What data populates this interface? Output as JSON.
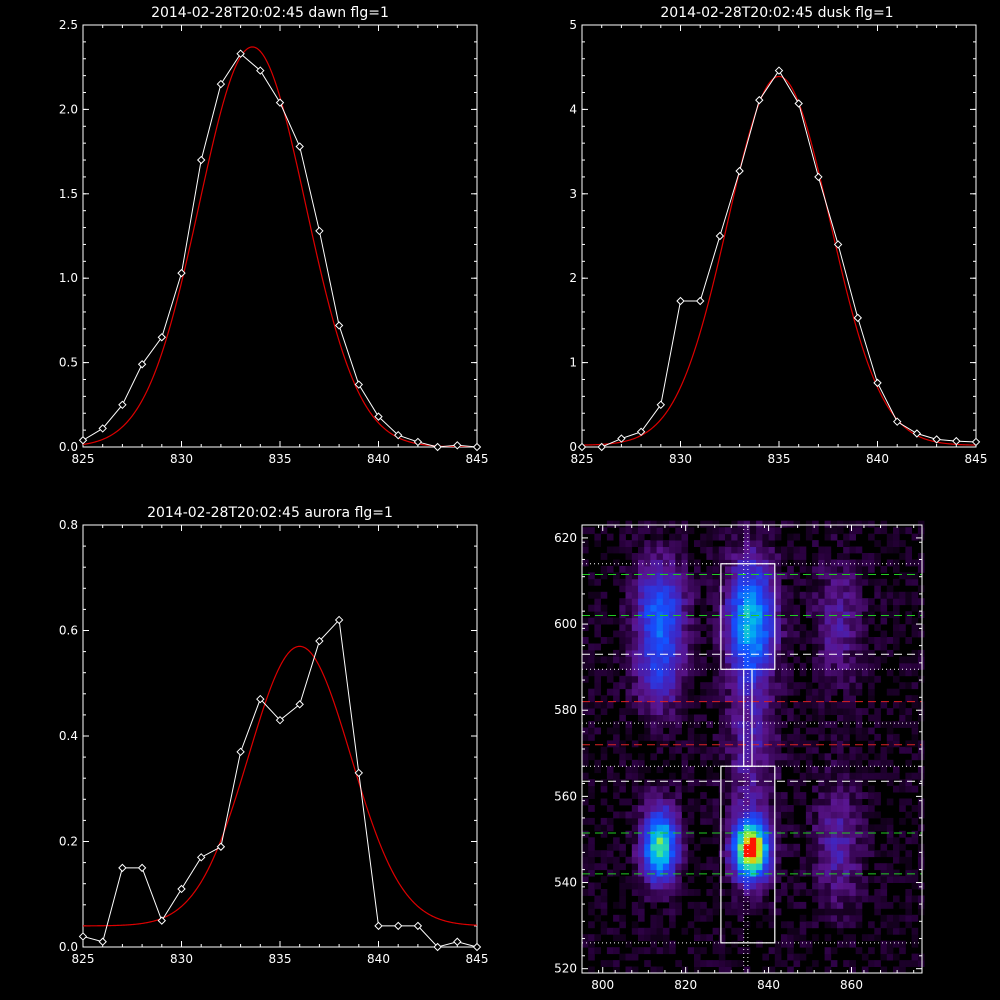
{
  "chart_data": [
    {
      "type": "line",
      "title": "2014-02-28T20:02:45 dawn flg=1",
      "xlim": [
        825,
        845
      ],
      "ylim": [
        0,
        2.5
      ],
      "xticks": [
        825,
        830,
        835,
        840,
        845
      ],
      "xtick_labels": [
        "825",
        "830",
        "835",
        "840",
        "845"
      ],
      "yticks": [
        0,
        0.5,
        1.0,
        1.5,
        2.0,
        2.5
      ],
      "ytick_labels": [
        "0.0",
        "0.5",
        "1.0",
        "1.5",
        "2.0",
        "2.5"
      ],
      "series": [
        {
          "kind": "data",
          "color": "#ffffff",
          "x": [
            825,
            826,
            827,
            828,
            829,
            830,
            831,
            832,
            833,
            834,
            835,
            836,
            837,
            838,
            839,
            840,
            841,
            842,
            843,
            844,
            845
          ],
          "y": [
            0.04,
            0.11,
            0.25,
            0.49,
            0.65,
            1.03,
            1.7,
            2.15,
            2.33,
            2.23,
            2.04,
            1.78,
            1.28,
            0.72,
            0.37,
            0.18,
            0.07,
            0.03,
            0.0,
            0.01,
            0.0
          ]
        },
        {
          "kind": "fit",
          "color": "#dd0000",
          "gauss": {
            "a": 2.37,
            "mu": 833.6,
            "sigma": 2.7,
            "c": 0.0
          }
        }
      ]
    },
    {
      "type": "line",
      "title": "2014-02-28T20:02:45 dusk flg=1",
      "xlim": [
        825,
        845
      ],
      "ylim": [
        0,
        5
      ],
      "xticks": [
        825,
        830,
        835,
        840,
        845
      ],
      "xtick_labels": [
        "825",
        "830",
        "835",
        "840",
        "845"
      ],
      "yticks": [
        0,
        1,
        2,
        3,
        4,
        5
      ],
      "ytick_labels": [
        "0",
        "1",
        "2",
        "3",
        "4",
        "5"
      ],
      "series": [
        {
          "kind": "data",
          "color": "#ffffff",
          "x": [
            825,
            826,
            827,
            828,
            829,
            830,
            831,
            832,
            833,
            834,
            835,
            836,
            837,
            838,
            839,
            840,
            841,
            842,
            843,
            844,
            845
          ],
          "y": [
            0.0,
            0.0,
            0.1,
            0.18,
            0.5,
            1.73,
            1.73,
            2.5,
            3.27,
            4.11,
            4.46,
            4.07,
            3.2,
            2.4,
            1.53,
            0.76,
            0.3,
            0.16,
            0.09,
            0.07,
            0.06
          ]
        },
        {
          "kind": "fit",
          "color": "#dd0000",
          "gauss": {
            "a": 4.37,
            "mu": 835.0,
            "sigma": 2.6,
            "c": 0.02
          }
        }
      ]
    },
    {
      "type": "line",
      "title": "2014-02-28T20:02:45 aurora flg=1",
      "xlim": [
        825,
        845
      ],
      "ylim": [
        0,
        0.8
      ],
      "xticks": [
        825,
        830,
        835,
        840,
        845
      ],
      "xtick_labels": [
        "825",
        "830",
        "835",
        "840",
        "845"
      ],
      "yticks": [
        0,
        0.2,
        0.4,
        0.6,
        0.8
      ],
      "ytick_labels": [
        "0.0",
        "0.2",
        "0.4",
        "0.6",
        "0.8"
      ],
      "series": [
        {
          "kind": "data",
          "color": "#ffffff",
          "x": [
            825,
            826,
            827,
            828,
            829,
            830,
            831,
            832,
            833,
            834,
            835,
            836,
            837,
            838,
            839,
            840,
            841,
            842,
            843,
            844,
            845
          ],
          "y": [
            0.02,
            0.01,
            0.15,
            0.15,
            0.05,
            0.11,
            0.17,
            0.19,
            0.37,
            0.47,
            0.43,
            0.46,
            0.58,
            0.62,
            0.33,
            0.04,
            0.04,
            0.04,
            0.0,
            0.01,
            0.0
          ]
        },
        {
          "kind": "fit",
          "color": "#dd0000",
          "gauss": {
            "a": 0.53,
            "mu": 836.0,
            "sigma": 2.6,
            "c": 0.04
          }
        }
      ]
    },
    {
      "type": "heatmap",
      "title": "",
      "xlim": [
        795,
        877
      ],
      "ylim": [
        519,
        623
      ],
      "xticks": [
        800,
        820,
        840,
        860
      ],
      "xtick_labels": [
        "800",
        "820",
        "840",
        "860"
      ],
      "yticks": [
        520,
        540,
        560,
        580,
        600,
        620
      ],
      "ytick_labels": [
        "520",
        "540",
        "560",
        "580",
        "600",
        "620"
      ],
      "blobs": [
        {
          "x": 813,
          "y": 602,
          "sx": 4,
          "sy": 8,
          "amp": 0.45
        },
        {
          "x": 813,
          "y": 587,
          "sx": 4,
          "sy": 6,
          "amp": 0.25
        },
        {
          "x": 813,
          "y": 548,
          "sx": 3,
          "sy": 6,
          "amp": 0.7
        },
        {
          "x": 835,
          "y": 600,
          "sx": 4,
          "sy": 10,
          "amp": 0.6
        },
        {
          "x": 835,
          "y": 547,
          "sx": 3,
          "sy": 5,
          "amp": 1.0
        },
        {
          "x": 835,
          "y": 570,
          "sx": 4,
          "sy": 10,
          "amp": 0.2
        },
        {
          "x": 856,
          "y": 600,
          "sx": 4,
          "sy": 10,
          "amp": 0.18
        },
        {
          "x": 856,
          "y": 548,
          "sx": 4,
          "sy": 10,
          "amp": 0.2
        }
      ],
      "hlines": [
        {
          "y": 611.5,
          "style": "dash",
          "color": "#22cc22"
        },
        {
          "y": 602,
          "style": "dash",
          "color": "#22cc22"
        },
        {
          "y": 593,
          "style": "dash",
          "color": "#ffffff"
        },
        {
          "y": 589.5,
          "style": "dot",
          "color": "#ffffff"
        },
        {
          "y": 582,
          "style": "dash",
          "color": "#dd2222"
        },
        {
          "y": 577,
          "style": "dot",
          "color": "#ffffff"
        },
        {
          "y": 572,
          "style": "dash",
          "color": "#dd2222"
        },
        {
          "y": 567,
          "style": "dot",
          "color": "#ffffff"
        },
        {
          "y": 563.5,
          "style": "dash",
          "color": "#ffffff"
        },
        {
          "y": 551.5,
          "style": "dash",
          "color": "#22cc22"
        },
        {
          "y": 542,
          "style": "dash",
          "color": "#22cc22"
        },
        {
          "y": 526,
          "style": "dot",
          "color": "#ffffff"
        },
        {
          "y": 614,
          "style": "dot",
          "color": "#ffffff"
        }
      ],
      "vlines": [
        {
          "x": 834,
          "style": "dot",
          "color": "#ffffff"
        },
        {
          "x": 835,
          "style": "dot",
          "color": "#ffffff"
        }
      ],
      "boxes": [
        {
          "x0": 828.5,
          "x1": 841.5,
          "y0": 589.5,
          "y1": 614
        },
        {
          "x0": 828.5,
          "x1": 841.5,
          "y0": 526,
          "y1": 567
        },
        {
          "x0": 834,
          "x1": 836,
          "y0": 567,
          "y1": 589.5
        }
      ]
    }
  ]
}
